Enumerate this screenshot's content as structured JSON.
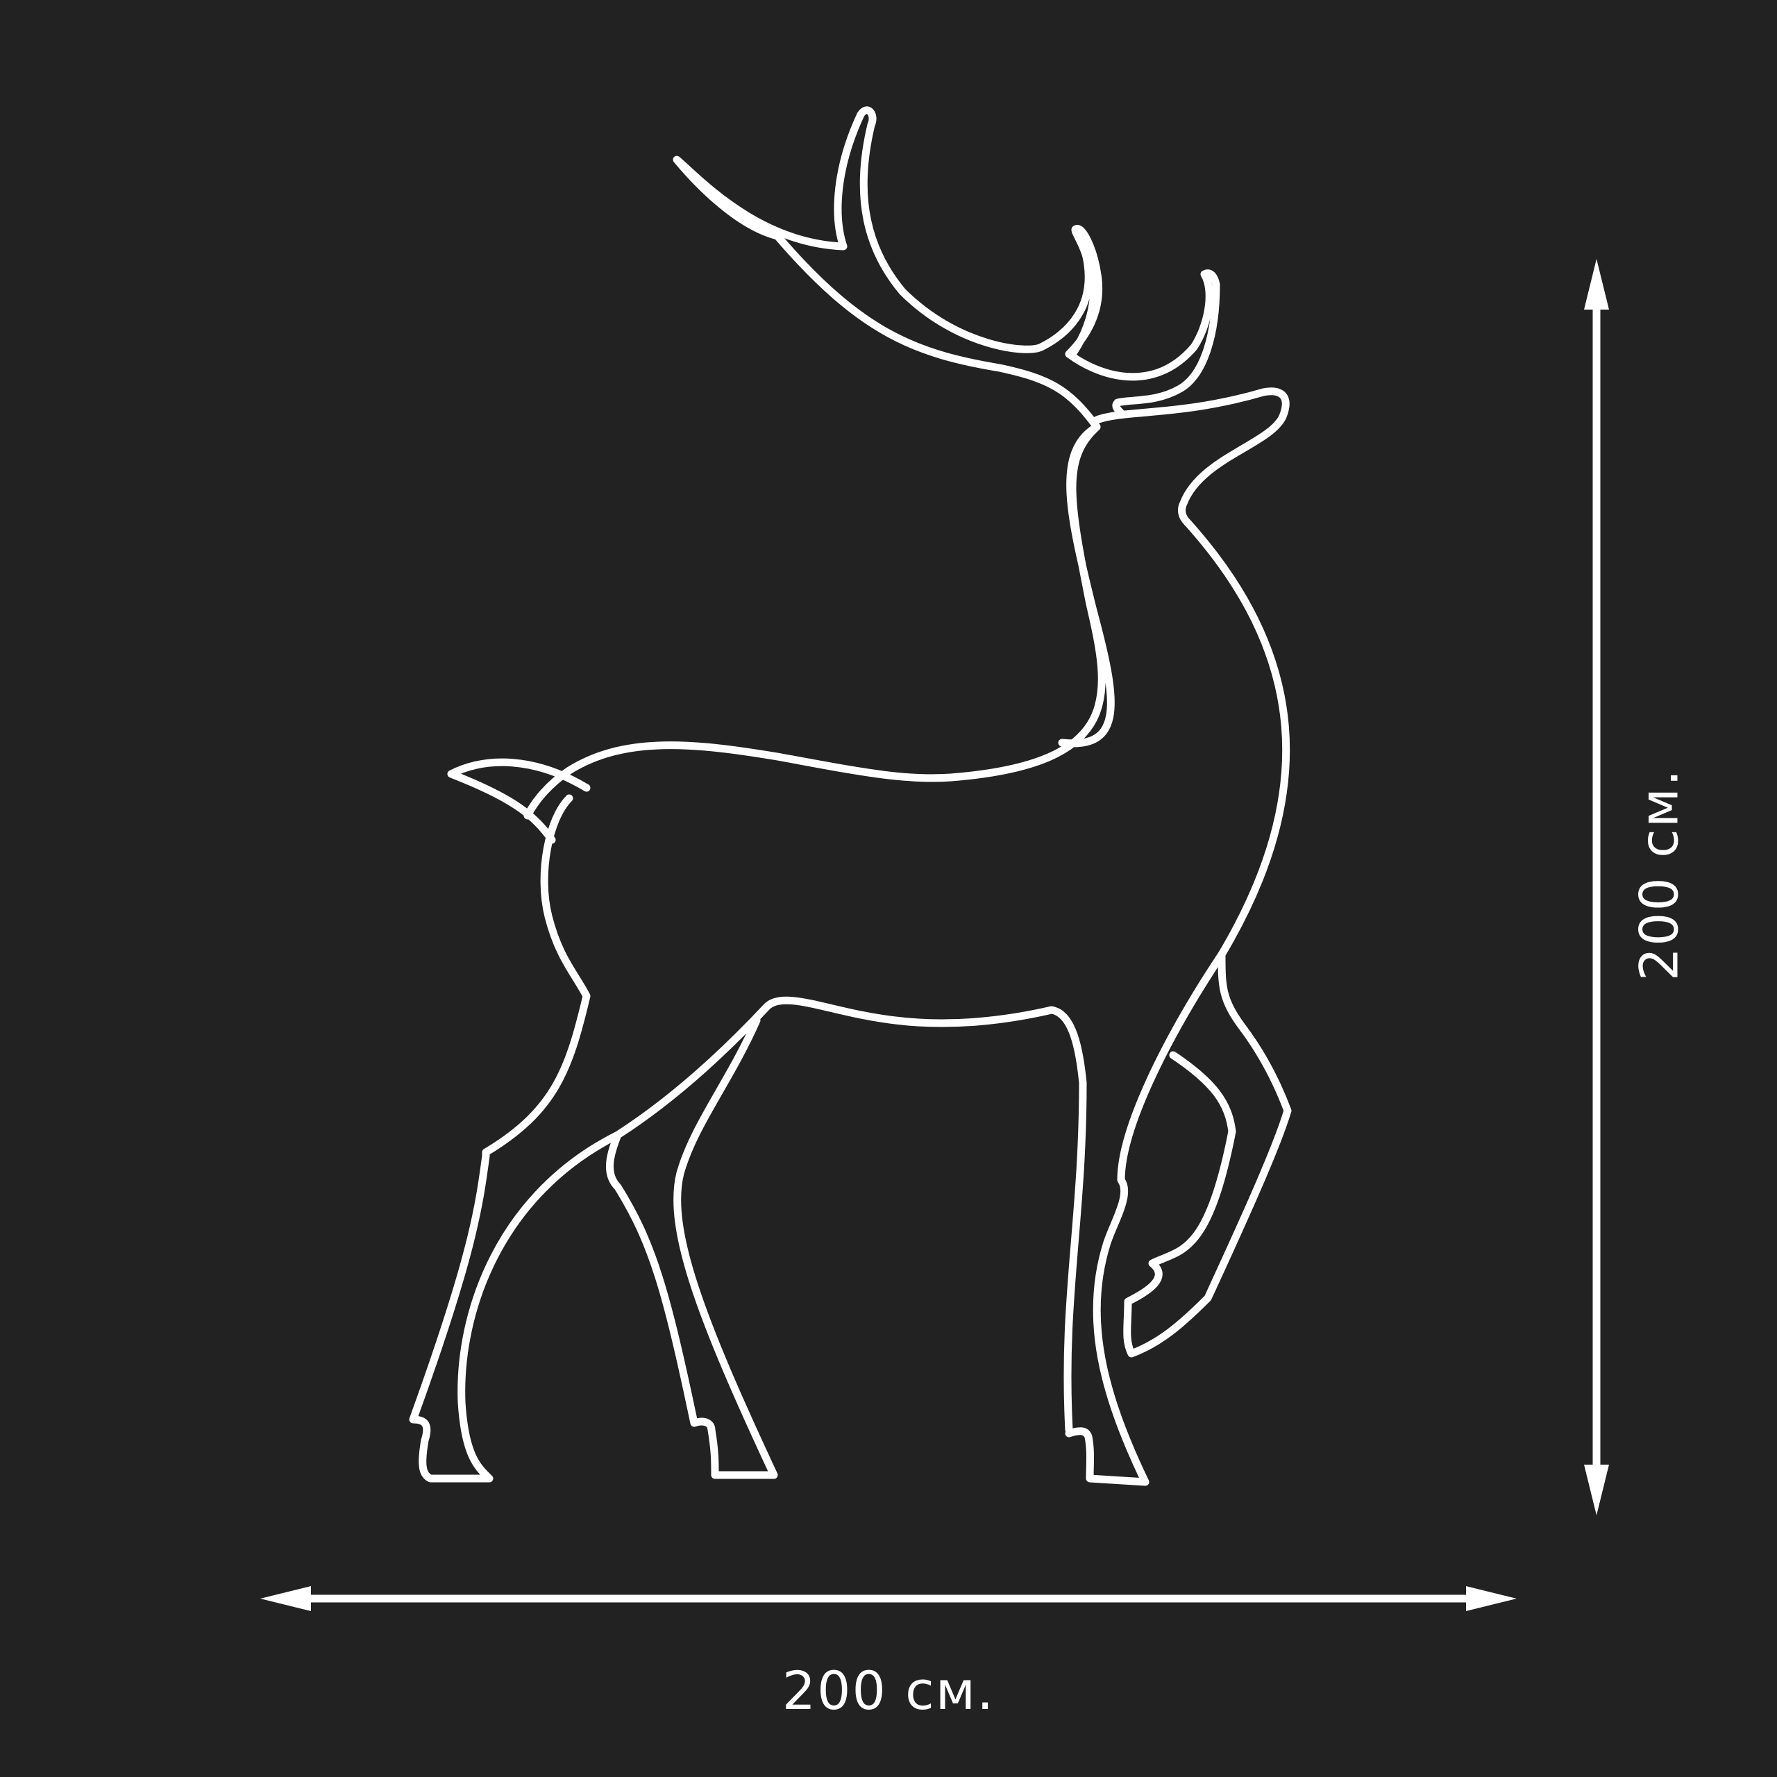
{
  "figure": {
    "subject_icon": "deer-outline-icon",
    "colors": {
      "background": "#222222",
      "stroke": "#ffffff"
    }
  },
  "dimensions": {
    "width_label": "200 см.",
    "height_label": "200 см."
  }
}
